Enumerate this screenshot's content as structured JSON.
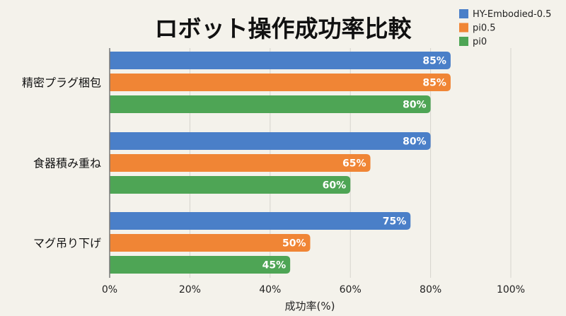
{
  "chart_data": {
    "type": "bar",
    "orientation": "horizontal",
    "title": "ロボット操作成功率比較",
    "xlabel": "成功率(%)",
    "ylabel": "",
    "xlim": [
      0,
      100
    ],
    "xticks": [
      "0%",
      "20%",
      "40%",
      "60%",
      "80%",
      "100%"
    ],
    "grid": true,
    "legend_position": "top-right",
    "categories": [
      "精密プラグ梱包",
      "食器積み重ね",
      "マグ吊り下げ"
    ],
    "series": [
      {
        "name": "HY-Embodied-0.5",
        "color": "#4a7fc8",
        "values": [
          85,
          80,
          75
        ]
      },
      {
        "name": "pi0.5",
        "color": "#f08535",
        "values": [
          85,
          65,
          50
        ]
      },
      {
        "name": "pi0",
        "color": "#4ea555",
        "values": [
          80,
          60,
          45
        ]
      }
    ]
  }
}
